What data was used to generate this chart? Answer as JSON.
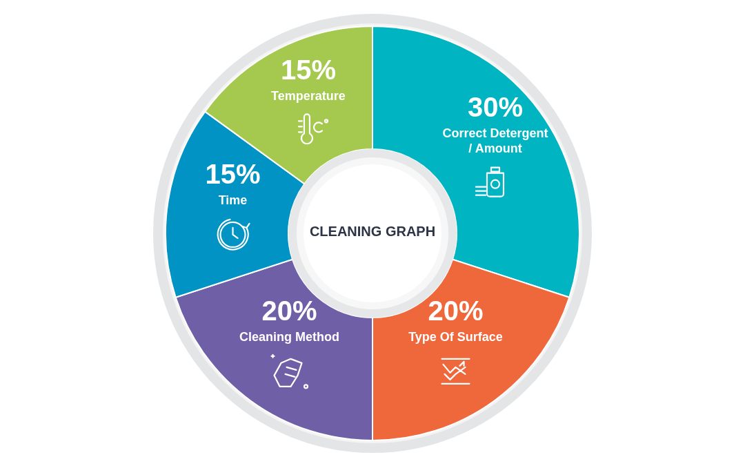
{
  "chart_data": {
    "type": "donut",
    "title": "CLEANING GRAPH",
    "categories": [
      "Correct Detergent / Amount",
      "Type Of Surface",
      "Cleaning Method",
      "Time",
      "Temperature"
    ],
    "values": [
      30,
      20,
      20,
      15,
      15
    ],
    "value_labels": [
      "30%",
      "20%",
      "20%",
      "15%",
      "15%"
    ],
    "colors": [
      "#00b4c2",
      "#ee683b",
      "#6e5fa7",
      "#0093c4",
      "#a4c94e"
    ]
  }
}
